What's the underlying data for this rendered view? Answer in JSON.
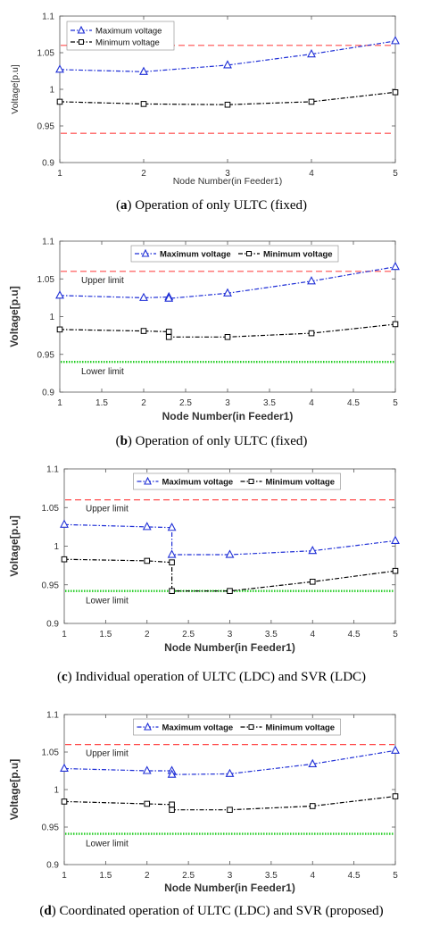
{
  "colors": {
    "max_series": "#1f2fd6",
    "min_series": "#000000",
    "upper_limit_line": "#ff4d4d",
    "lower_limit_line": "#22cc22",
    "axes": "#555555"
  },
  "captions": [
    {
      "letter": "a",
      "text": " Operation of only ULTC (fixed)",
      "prefix": "(",
      "suffix": ")"
    },
    {
      "letter": "b",
      "text": " Operation of only ULTC (fixed)",
      "prefix": "(",
      "suffix": ")"
    },
    {
      "letter": "c",
      "text": " Individual operation of ULTC (LDC) and SVR (LDC)",
      "prefix": "(",
      "suffix": ")"
    },
    {
      "letter": "d",
      "text": " Coordinated operation of ULTC (LDC) and SVR (proposed)",
      "prefix": "(",
      "suffix": ")"
    }
  ],
  "chart_data": [
    {
      "type": "line",
      "xlabel": "Node Number(in Feeder1)",
      "ylabel": "Voltage[p.u]",
      "xlim": [
        1,
        5
      ],
      "ylim": [
        0.9,
        1.1
      ],
      "xticks": [
        "1",
        "2",
        "3",
        "4",
        "5"
      ],
      "yticks": [
        "0.9",
        "0.95",
        "1",
        "1.05",
        "1.1"
      ],
      "legend": "top-left",
      "bold_labels": false,
      "series": [
        {
          "name": "Maximum voltage",
          "marker": "triangle",
          "x": [
            1,
            2,
            3,
            4,
            5
          ],
          "y": [
            1.027,
            1.024,
            1.033,
            1.048,
            1.066
          ]
        },
        {
          "name": "Minimum voltage",
          "marker": "square",
          "x": [
            1,
            2,
            3,
            4,
            5
          ],
          "y": [
            0.983,
            0.98,
            0.979,
            0.983,
            0.996
          ]
        }
      ],
      "limits": [
        {
          "value": 1.06,
          "style": "dashed",
          "label": ""
        },
        {
          "value": 0.94,
          "style": "dashed",
          "label": ""
        }
      ]
    },
    {
      "type": "line",
      "xlabel": "Node Number(in Feeder1)",
      "ylabel": "Voltage[p.u]",
      "xlim": [
        1,
        5
      ],
      "ylim": [
        0.9,
        1.1
      ],
      "xticks": [
        "1",
        "1.5",
        "2",
        "2.5",
        "3",
        "3.5",
        "4",
        "4.5",
        "5"
      ],
      "yticks": [
        "0.9",
        "0.95",
        "1",
        "1.05",
        "1.1"
      ],
      "legend": "top",
      "bold_labels": true,
      "series": [
        {
          "name": "Maximum voltage",
          "marker": "triangle",
          "x": [
            1,
            2,
            2.3,
            2.3,
            3,
            4,
            5
          ],
          "y": [
            1.028,
            1.025,
            1.026,
            1.024,
            1.031,
            1.047,
            1.066
          ]
        },
        {
          "name": "Minimum voltage",
          "marker": "square",
          "x": [
            1,
            2,
            2.3,
            2.3,
            3,
            4,
            5
          ],
          "y": [
            0.983,
            0.981,
            0.98,
            0.973,
            0.973,
            0.978,
            0.99
          ]
        }
      ],
      "limits": [
        {
          "value": 1.06,
          "style": "dashed",
          "label": "Upper limit"
        },
        {
          "value": 0.94,
          "style": "dotted",
          "label": "Lower limit"
        }
      ]
    },
    {
      "type": "line",
      "xlabel": "Node Number(in Feeder1)",
      "ylabel": "Voltage[p.u]",
      "xlim": [
        1,
        5
      ],
      "ylim": [
        0.9,
        1.1
      ],
      "xticks": [
        "1",
        "1.5",
        "2",
        "2.5",
        "3",
        "3.5",
        "4",
        "4.5",
        "5"
      ],
      "yticks": [
        "0.9",
        "0.95",
        "1",
        "1.05",
        "1.1"
      ],
      "legend": "top",
      "bold_labels": true,
      "series": [
        {
          "name": "Maximum voltage",
          "marker": "triangle",
          "x": [
            1,
            2,
            2.3,
            2.3,
            3,
            4,
            5
          ],
          "y": [
            1.028,
            1.025,
            1.024,
            0.989,
            0.989,
            0.994,
            1.007
          ]
        },
        {
          "name": "Minimum voltage",
          "marker": "square",
          "x": [
            1,
            2,
            2.3,
            2.3,
            3,
            4,
            5
          ],
          "y": [
            0.983,
            0.981,
            0.979,
            0.942,
            0.942,
            0.954,
            0.968
          ]
        }
      ],
      "limits": [
        {
          "value": 1.06,
          "style": "dashed",
          "label": "Upper limit"
        },
        {
          "value": 0.942,
          "style": "dotted",
          "label": "Lower limit"
        }
      ]
    },
    {
      "type": "line",
      "xlabel": "Node Number(in Feeder1)",
      "ylabel": "Voltage[p.u]",
      "xlim": [
        1,
        5
      ],
      "ylim": [
        0.9,
        1.1
      ],
      "xticks": [
        "1",
        "1.5",
        "2",
        "2.5",
        "3",
        "3.5",
        "4",
        "4.5",
        "5"
      ],
      "yticks": [
        "0.9",
        "0.95",
        "1",
        "1.05",
        "1.1"
      ],
      "legend": "top",
      "bold_labels": true,
      "series": [
        {
          "name": "Maximum voltage",
          "marker": "triangle",
          "x": [
            1,
            2,
            2.3,
            2.3,
            3,
            4,
            5
          ],
          "y": [
            1.028,
            1.025,
            1.025,
            1.02,
            1.021,
            1.034,
            1.052
          ]
        },
        {
          "name": "Minimum voltage",
          "marker": "square",
          "x": [
            1,
            2,
            2.3,
            2.3,
            3,
            4,
            5
          ],
          "y": [
            0.984,
            0.981,
            0.98,
            0.973,
            0.973,
            0.978,
            0.991
          ]
        }
      ],
      "limits": [
        {
          "value": 1.06,
          "style": "dashed",
          "label": "Upper limit"
        },
        {
          "value": 0.941,
          "style": "dotted",
          "label": "Lower limit"
        }
      ]
    }
  ]
}
